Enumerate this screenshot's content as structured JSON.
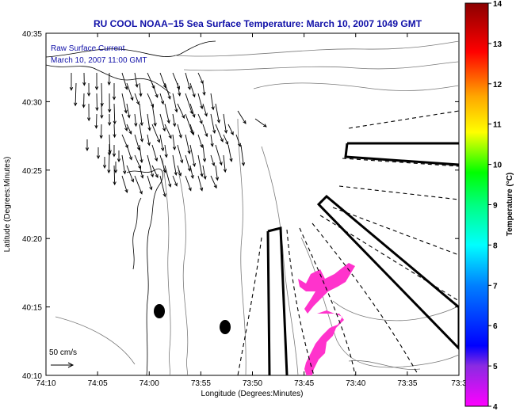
{
  "title": "RU COOL  NOAA−15  Sea Surface Temperature:  March 10, 2007 1049 GMT",
  "legend_note": {
    "line1": "Raw Surface Current",
    "line2": "March 10, 2007 11:00 GMT"
  },
  "scale_label": "50 cm/s",
  "x_axis": {
    "label": "Longitude (Degrees:Minutes)",
    "ticks": [
      "74:10",
      "74:05",
      "74:00",
      "73:55",
      "73:50",
      "73:45",
      "73:40",
      "73:35",
      "73:3"
    ]
  },
  "y_axis": {
    "label": "Latitude (Degrees:Minutes)",
    "ticks": [
      "40:35",
      "40:30",
      "40:25",
      "40:20",
      "40:15",
      "40:10"
    ]
  },
  "colorbar": {
    "label": "Temperature (°C)",
    "ticks": [
      "14",
      "13",
      "12",
      "11",
      "10",
      "9",
      "8",
      "7",
      "6",
      "5",
      "4"
    ],
    "colors": [
      "#ff00ff",
      "#8a2be2",
      "#0000ff",
      "#0080ff",
      "#00ffff",
      "#00ff80",
      "#00ff00",
      "#ffff00",
      "#ffa500",
      "#ff0000",
      "#8b0000"
    ]
  },
  "colors": {
    "title": "#1010a8",
    "cold_water": "#ff33cc",
    "contours": "#7a7a7a"
  },
  "chart_data": {
    "type": "map",
    "xlim": [
      "74:10",
      "73:30"
    ],
    "ylim": [
      "40:10",
      "40:35"
    ]
  }
}
